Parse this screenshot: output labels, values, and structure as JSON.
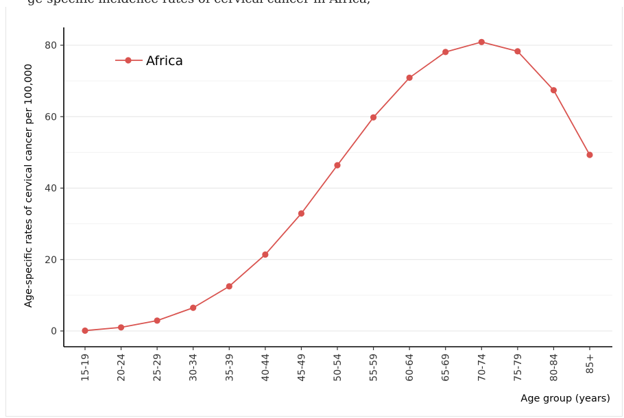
{
  "page": {
    "top_partial_text": "ge-specific incidence rates of cervical cancer in Africa,"
  },
  "chart_data": {
    "type": "line",
    "title": "",
    "xlabel": "Age group (years)",
    "ylabel": "Age-specific rates of cervical cancer per 100,000",
    "categories": [
      "15-19",
      "20-24",
      "25-29",
      "30-34",
      "35-39",
      "40-44",
      "45-49",
      "50-54",
      "55-59",
      "60-64",
      "65-69",
      "70-74",
      "75-79",
      "80-84",
      "85+"
    ],
    "series": [
      {
        "name": "Africa",
        "color": "#d9534f",
        "values": [
          0.1,
          1.0,
          2.9,
          6.5,
          12.5,
          21.4,
          32.9,
          46.4,
          59.8,
          70.9,
          78.1,
          80.9,
          78.3,
          67.4,
          49.3
        ]
      }
    ],
    "ylim": [
      -3,
      85
    ],
    "yticks": [
      0,
      20,
      40,
      60,
      80
    ],
    "minor_grid": [
      10,
      30,
      50,
      70
    ],
    "grid": "horizontal",
    "legend_position": "top-left"
  }
}
